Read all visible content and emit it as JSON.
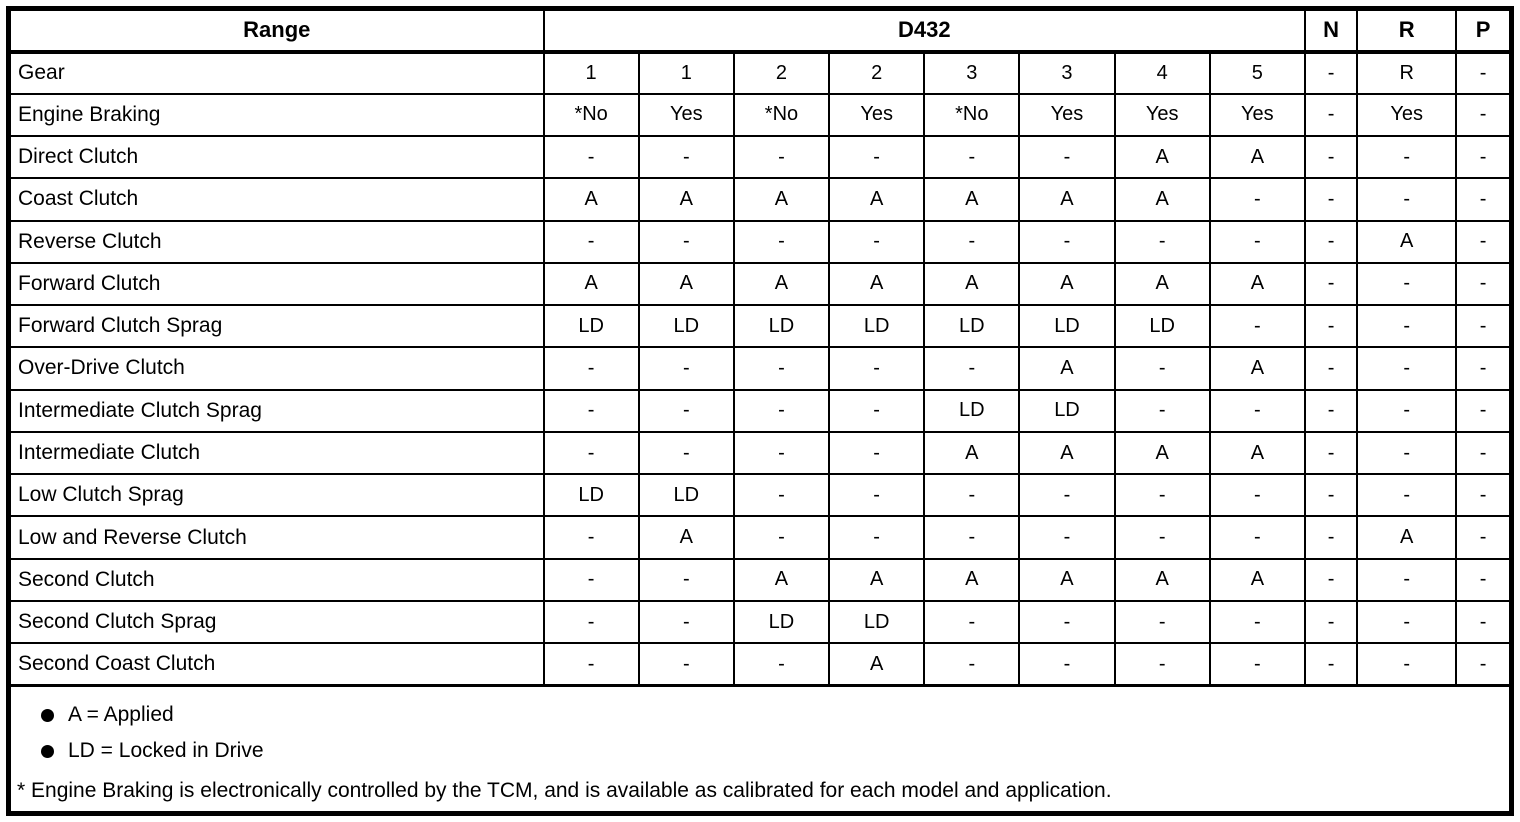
{
  "table": {
    "header": {
      "range_label": "Range",
      "group_label": "D432",
      "n_label": "N",
      "r_label": "R",
      "p_label": "P"
    },
    "rows": [
      {
        "label": "Gear",
        "values": [
          "1",
          "1",
          "2",
          "2",
          "3",
          "3",
          "4",
          "5",
          "-",
          "R",
          "-"
        ]
      },
      {
        "label": "Engine Braking",
        "values": [
          "*No",
          "Yes",
          "*No",
          "Yes",
          "*No",
          "Yes",
          "Yes",
          "Yes",
          "-",
          "Yes",
          "-"
        ]
      },
      {
        "label": "Direct Clutch",
        "values": [
          "-",
          "-",
          "-",
          "-",
          "-",
          "-",
          "A",
          "A",
          "-",
          "-",
          "-"
        ]
      },
      {
        "label": "Coast Clutch",
        "values": [
          "A",
          "A",
          "A",
          "A",
          "A",
          "A",
          "A",
          "-",
          "-",
          "-",
          "-"
        ]
      },
      {
        "label": "Reverse Clutch",
        "values": [
          "-",
          "-",
          "-",
          "-",
          "-",
          "-",
          "-",
          "-",
          "-",
          "A",
          "-"
        ]
      },
      {
        "label": "Forward Clutch",
        "values": [
          "A",
          "A",
          "A",
          "A",
          "A",
          "A",
          "A",
          "A",
          "-",
          "-",
          "-"
        ]
      },
      {
        "label": "Forward Clutch Sprag",
        "values": [
          "LD",
          "LD",
          "LD",
          "LD",
          "LD",
          "LD",
          "LD",
          "-",
          "-",
          "-",
          "-"
        ]
      },
      {
        "label": "Over-Drive Clutch",
        "values": [
          "-",
          "-",
          "-",
          "-",
          "-",
          "A",
          "-",
          "A",
          "-",
          "-",
          "-"
        ]
      },
      {
        "label": "Intermediate Clutch Sprag",
        "values": [
          "-",
          "-",
          "-",
          "-",
          "LD",
          "LD",
          "-",
          "-",
          "-",
          "-",
          "-"
        ]
      },
      {
        "label": "Intermediate Clutch",
        "values": [
          "-",
          "-",
          "-",
          "-",
          "A",
          "A",
          "A",
          "A",
          "-",
          "-",
          "-"
        ]
      },
      {
        "label": "Low Clutch Sprag",
        "values": [
          "LD",
          "LD",
          "-",
          "-",
          "-",
          "-",
          "-",
          "-",
          "-",
          "-",
          "-"
        ]
      },
      {
        "label": "Low and Reverse Clutch",
        "values": [
          "-",
          "A",
          "-",
          "-",
          "-",
          "-",
          "-",
          "-",
          "-",
          "A",
          "-"
        ]
      },
      {
        "label": "Second Clutch",
        "values": [
          "-",
          "-",
          "A",
          "A",
          "A",
          "A",
          "A",
          "A",
          "-",
          "-",
          "-"
        ]
      },
      {
        "label": "Second Clutch Sprag",
        "values": [
          "-",
          "-",
          "LD",
          "LD",
          "-",
          "-",
          "-",
          "-",
          "-",
          "-",
          "-"
        ]
      },
      {
        "label": "Second Coast Clutch",
        "values": [
          "-",
          "-",
          "-",
          "A",
          "-",
          "-",
          "-",
          "-",
          "-",
          "-",
          "-"
        ]
      }
    ],
    "legend": [
      {
        "text": "A = Applied"
      },
      {
        "text": "LD = Locked in Drive"
      }
    ],
    "footnote": "* Engine Braking is electronically controlled by the TCM, and is available as calibrated for each model and application.",
    "colors": {
      "border": "#000000",
      "text": "#000000",
      "background": "#ffffff"
    }
  }
}
